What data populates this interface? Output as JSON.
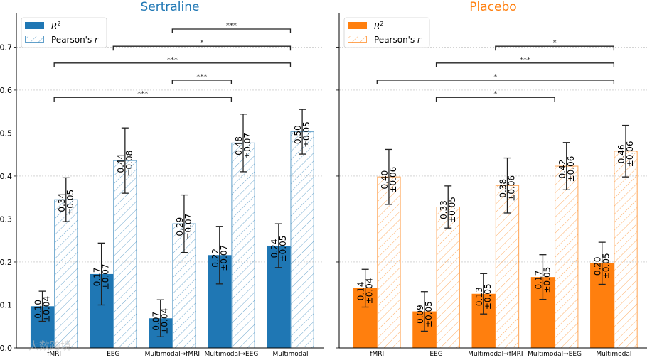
{
  "chart_data": [
    {
      "type": "bar",
      "title": "Sertraline",
      "color": "#1f77b4",
      "categories": [
        "fMRI",
        "EEG",
        "Multimodal→fMRI",
        "Multimodal→EEG",
        "Multimodal"
      ],
      "series": [
        {
          "name": "R²",
          "legend": "R",
          "legend_sup": "2",
          "style": "solid",
          "values": [
            0.097,
            0.172,
            0.069,
            0.216,
            0.238
          ],
          "errors": [
            0.035,
            0.072,
            0.043,
            0.067,
            0.051
          ],
          "labels": [
            "0.10",
            "0.17",
            "0.07",
            "0.22",
            "0.24"
          ],
          "error_labels": [
            "±0.04",
            "±0.07",
            "±0.04",
            "±0.07",
            "±0.05"
          ]
        },
        {
          "name": "Pearson's r",
          "legend": "Pearson's ",
          "legend_italic": "r",
          "style": "hatched",
          "values": [
            0.345,
            0.436,
            0.289,
            0.477,
            0.503
          ],
          "errors": [
            0.051,
            0.076,
            0.067,
            0.067,
            0.052
          ],
          "labels": [
            "0.34",
            "0.44",
            "0.29",
            "0.48",
            "0.50"
          ],
          "error_labels": [
            "±0.05",
            "±0.08",
            "±0.07",
            "±0.07",
            "±0.05"
          ]
        }
      ],
      "significance": [
        {
          "from": 2,
          "to": 4,
          "y": 0.742,
          "label": "***"
        },
        {
          "from": 1,
          "to": 4,
          "y": 0.702,
          "label": "*"
        },
        {
          "from": 0,
          "to": 4,
          "y": 0.663,
          "label": "***"
        },
        {
          "from": 2,
          "to": 3,
          "y": 0.623,
          "label": "***"
        },
        {
          "from": 0,
          "to": 3,
          "y": 0.583,
          "label": "***"
        }
      ],
      "ylim": [
        0,
        0.78
      ],
      "yticks": [
        "0.0",
        "0.1",
        "0.2",
        "0.3",
        "0.4",
        "0.5",
        "0.6",
        "0.7"
      ],
      "grid": true,
      "legend_position": "top-left"
    },
    {
      "type": "bar",
      "title": "Placebo",
      "color": "#ff7f0e",
      "categories": [
        "fMRI",
        "EEG",
        "Multimodal→fMRI",
        "Multimodal→EEG",
        "Multimodal"
      ],
      "series": [
        {
          "name": "R²",
          "legend": "R",
          "legend_sup": "2",
          "style": "solid",
          "values": [
            0.139,
            0.085,
            0.126,
            0.165,
            0.197
          ],
          "errors": [
            0.044,
            0.046,
            0.047,
            0.052,
            0.049
          ],
          "labels": [
            "0.14",
            "0.09",
            "0.13",
            "0.17",
            "0.20"
          ],
          "error_labels": [
            "±0.04",
            "±0.05",
            "±0.05",
            "±0.05",
            "±0.05"
          ]
        },
        {
          "name": "Pearson's r",
          "legend": "Pearson's ",
          "legend_italic": "r",
          "style": "hatched",
          "values": [
            0.398,
            0.328,
            0.378,
            0.423,
            0.458
          ],
          "errors": [
            0.064,
            0.049,
            0.064,
            0.055,
            0.06
          ],
          "labels": [
            "0.40",
            "0.33",
            "0.38",
            "0.42",
            "0.46"
          ],
          "error_labels": [
            "±0.06",
            "±0.05",
            "±0.06",
            "±0.06",
            "±0.06"
          ]
        }
      ],
      "significance": [
        {
          "from": 2,
          "to": 4,
          "y": 0.702,
          "label": "*"
        },
        {
          "from": 1,
          "to": 4,
          "y": 0.663,
          "label": "***"
        },
        {
          "from": 0,
          "to": 4,
          "y": 0.623,
          "label": "*"
        },
        {
          "from": 1,
          "to": 3,
          "y": 0.583,
          "label": "*"
        }
      ],
      "ylim": [
        0,
        0.78
      ],
      "yticks": [],
      "grid": true,
      "legend_position": "top-left"
    }
  ],
  "watermark": "大数跨境"
}
